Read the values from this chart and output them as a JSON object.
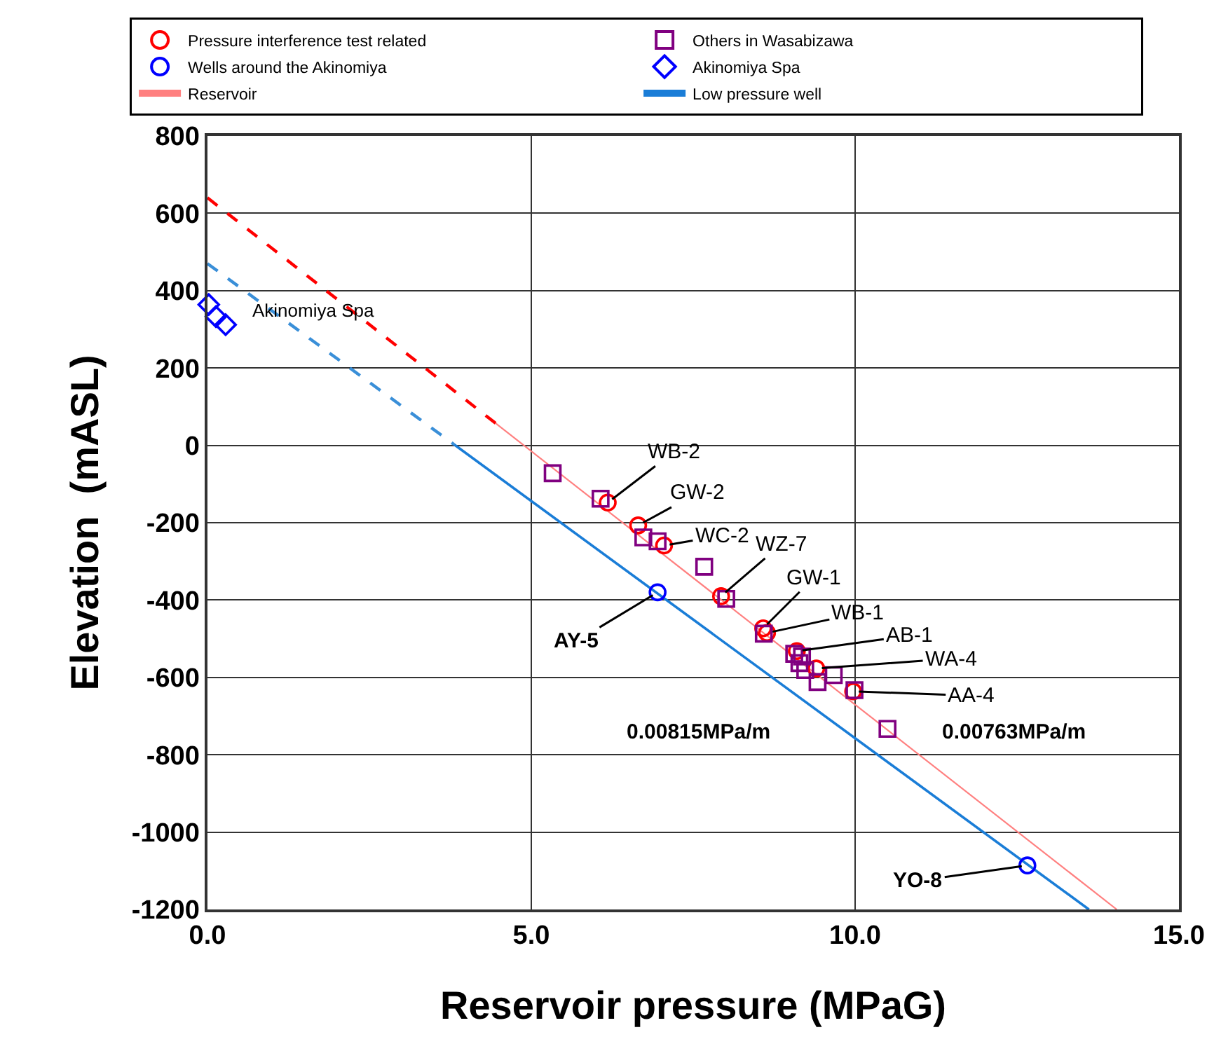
{
  "chart_data": {
    "type": "scatter",
    "xlabel": "Reservoir pressure (MPaG)",
    "ylabel": "Elevation  (mASL)",
    "xlim": [
      0,
      15
    ],
    "xticks": [
      {
        "value": 0,
        "label": "0.0"
      },
      {
        "value": 5,
        "label": "5.0"
      },
      {
        "value": 10,
        "label": "10.0"
      },
      {
        "value": 15,
        "label": "15.0"
      }
    ],
    "ylim": [
      -1200,
      800
    ],
    "yticks": [
      -1200,
      -1000,
      -800,
      -600,
      -400,
      -200,
      0,
      200,
      400,
      600,
      800
    ],
    "grid": true,
    "legend": "top",
    "series": [
      {
        "name": "Pressure interference test related",
        "color": "#ff0000",
        "marker": "circle",
        "x": [
          6.18,
          6.65,
          7.05,
          7.93,
          8.58,
          8.64,
          9.1,
          9.4,
          9.97
        ],
        "values": [
          -148,
          -207,
          -259,
          -390,
          -473,
          -485,
          -532,
          -577,
          -636
        ]
      },
      {
        "name": "Others in Wasabizawa",
        "color": "#800080",
        "marker": "square",
        "x": [
          5.33,
          6.07,
          6.73,
          6.95,
          7.67,
          8.01,
          8.59,
          9.06,
          9.18,
          9.14,
          9.23,
          9.42,
          9.67,
          9.99,
          10.5
        ],
        "values": [
          -72,
          -138,
          -238,
          -248,
          -314,
          -397,
          -487,
          -539,
          -546,
          -563,
          -581,
          -612,
          -594,
          -633,
          -733
        ]
      },
      {
        "name": "Wells around the Akinomiya",
        "color": "#0000ff",
        "marker": "circle",
        "x": [
          6.95,
          12.66
        ],
        "values": [
          -380,
          -1086
        ]
      },
      {
        "name": "Akinomiya Spa",
        "color": "#0000ff",
        "marker": "diamond",
        "x": [
          0.02,
          0.13,
          0.28
        ],
        "values": [
          364,
          333,
          312
        ]
      },
      {
        "type": "line",
        "name": "Reservoir",
        "color": "#ff8080",
        "line_style": "solid",
        "x": [
          4.45,
          14.04
        ],
        "values": [
          57,
          -1200
        ]
      },
      {
        "type": "line",
        "name": "Low pressure well",
        "color": "#1a7dd7",
        "line_style": "solid",
        "x": [
          3.81,
          13.61
        ],
        "values": [
          2,
          -1200
        ]
      },
      {
        "type": "line",
        "color": "#ff0000",
        "line_style": "dashed",
        "x": [
          0,
          4.45
        ],
        "values": [
          640,
          57
        ]
      },
      {
        "type": "line",
        "color": "#3a8fd8",
        "line_style": "dashed",
        "x": [
          0,
          3.81
        ],
        "values": [
          470,
          2
        ]
      }
    ],
    "annotations": [
      {
        "text": "WB-2",
        "x": 6.18,
        "y": -148
      },
      {
        "text": "GW-2",
        "x": 6.65,
        "y": -207
      },
      {
        "text": "WC-2",
        "x": 7.05,
        "y": -259
      },
      {
        "text": "WZ-7",
        "x": 7.93,
        "y": -390
      },
      {
        "text": "GW-1",
        "x": 8.58,
        "y": -473
      },
      {
        "text": "WB-1",
        "x": 8.64,
        "y": -485
      },
      {
        "text": "AB-1",
        "x": 9.1,
        "y": -532
      },
      {
        "text": "WA-4",
        "x": 9.4,
        "y": -577
      },
      {
        "text": "AA-4",
        "x": 9.97,
        "y": -636
      },
      {
        "text": "AY-5",
        "x": 6.95,
        "y": -380
      },
      {
        "text": "YO-8",
        "x": 12.66,
        "y": -1086
      },
      "Akinomiya Spa",
      "0.00815MPa/m",
      "0.00763MPa/m"
    ]
  }
}
